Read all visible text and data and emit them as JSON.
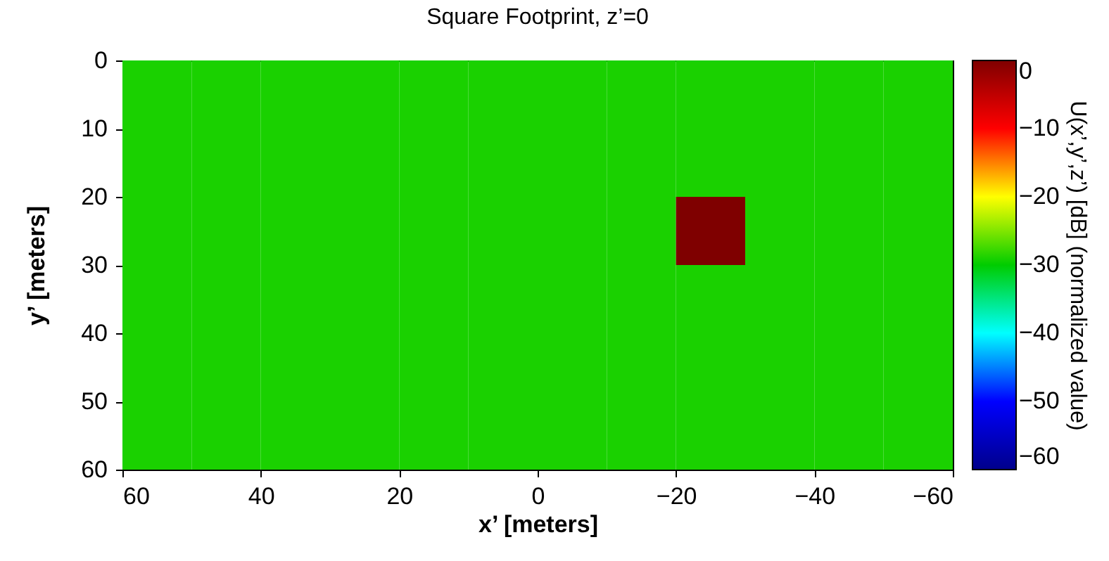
{
  "chart_data": {
    "type": "heatmap",
    "title": "Square Footprint, z’=0",
    "xlabel": "x’ [meters]",
    "ylabel": "y’ [meters]",
    "clabel": "U(x’,y’,z’) [dB] (normalized value)",
    "xlim": [
      60,
      -60
    ],
    "xticks": [
      60,
      40,
      20,
      0,
      -20,
      -40,
      -60
    ],
    "ylim": [
      60,
      0
    ],
    "yticks": [
      0,
      10,
      20,
      30,
      40,
      50,
      60
    ],
    "clim": [
      -60,
      0
    ],
    "cticks": [
      0,
      -10,
      -20,
      -30,
      -40,
      -50,
      -60
    ],
    "cells": [
      [
        -29,
        -29,
        -29,
        -29,
        -29,
        -29,
        -29,
        -29,
        -29,
        -29,
        -29,
        -29
      ],
      [
        -29,
        -29,
        -29,
        -29,
        -29,
        -29,
        -29,
        -29,
        -29,
        -29,
        -29,
        -29
      ],
      [
        -29,
        -29,
        -29,
        -29,
        -29,
        -29,
        -29,
        -29,
        0,
        -29,
        -29,
        -29
      ],
      [
        -29,
        -29,
        -29,
        -29,
        -29,
        -29,
        -29,
        -29,
        -29,
        -29,
        -29,
        -29
      ],
      [
        -29,
        -29,
        -29,
        -29,
        -29,
        -29,
        -29,
        -29,
        -29,
        -29,
        -29,
        -29
      ],
      [
        -29,
        -29,
        -29,
        -29,
        -29,
        -29,
        -29,
        -29,
        -29,
        -29,
        -29,
        -29
      ]
    ]
  }
}
